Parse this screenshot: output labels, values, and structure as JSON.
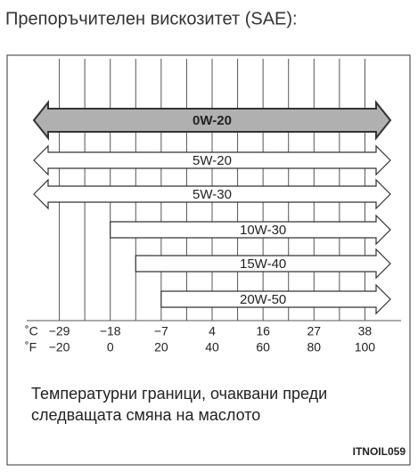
{
  "chart_data": {
    "type": "range",
    "title": "Препоръчителен вискозитет (SAE):",
    "xlabel_c": "˚C",
    "xlabel_f": "˚F",
    "xlim": [
      -30,
      110
    ],
    "xticks": [
      {
        "value": -20,
        "label": "−20"
      },
      0,
      20,
      40,
      60,
      80,
      100
    ],
    "xticks_c": [
      {
        "value": -20,
        "label": "−29"
      },
      {
        "value": 0,
        "label": "−18"
      },
      {
        "value": 20,
        "label": "−7"
      },
      {
        "value": 40,
        "label": "4"
      },
      {
        "value": 60,
        "label": "16"
      },
      {
        "value": 80,
        "label": "27"
      },
      {
        "value": 100,
        "label": "38"
      }
    ],
    "xminor": [
      -20,
      -10,
      0,
      10,
      20,
      30,
      40,
      50,
      60,
      70,
      80,
      90,
      100
    ],
    "grid": true,
    "series": [
      {
        "name": "0W-20",
        "from": null,
        "color": "#b0b0b0",
        "bold": true
      },
      {
        "name": "5W-20",
        "from": null,
        "color": "#ffffff",
        "bold": false
      },
      {
        "name": "5W-30",
        "from": null,
        "color": "#ffffff",
        "bold": false
      },
      {
        "name": "10W-30",
        "from": 0,
        "color": "#ffffff",
        "bold": false
      },
      {
        "name": "15W-40",
        "from": 10,
        "color": "#ffffff",
        "bold": false
      },
      {
        "name": "20W-50",
        "from": 20,
        "color": "#ffffff",
        "bold": false
      }
    ],
    "note": [
      "Температурни граници, очаквани преди",
      "следващата смяна на маслото"
    ],
    "code": "ITNOIL059"
  }
}
